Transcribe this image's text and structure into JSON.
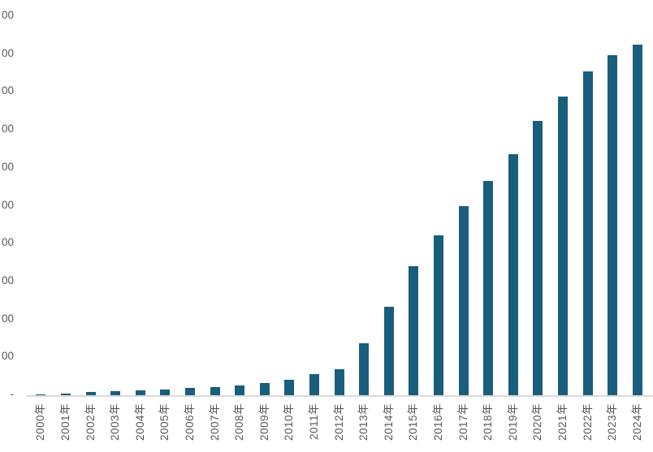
{
  "chart_data": {
    "type": "bar",
    "title": "",
    "xlabel": "",
    "ylabel": "",
    "categories": [
      "2000年",
      "2001年",
      "2002年",
      "2003年",
      "2004年",
      "2005年",
      "2006年",
      "2007年",
      "2008年",
      "2009年",
      "2010年",
      "2011年",
      "2012年",
      "2013年",
      "2014年",
      "2015年",
      "2016年",
      "2017年",
      "2018年",
      "2019年",
      "2020年",
      "2021年",
      "2022年",
      "2023年",
      "2024年"
    ],
    "values": [
      0.02,
      0.05,
      0.08,
      0.1,
      0.12,
      0.15,
      0.2,
      0.22,
      0.25,
      0.32,
      0.41,
      0.55,
      0.68,
      1.36,
      2.33,
      3.41,
      4.21,
      4.98,
      5.65,
      6.36,
      7.24,
      7.88,
      8.55,
      8.97,
      9.25
    ],
    "value_units": "y-axis gridline intervals (tick labels clipped at image edge; only trailing zeros visible)",
    "y_tick_labels": [
      "-",
      "00",
      "00",
      "00",
      "00",
      "00",
      "00",
      "00",
      "00",
      "00",
      "00"
    ],
    "ylim": [
      0,
      10.45
    ],
    "grid": false,
    "legend": false,
    "colors": {
      "bar": "#1A5E7D",
      "axis_line": "#D9D9D9",
      "tick_text": "#595959"
    }
  }
}
